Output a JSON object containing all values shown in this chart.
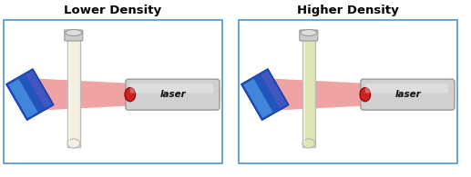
{
  "title_left": "Lower Density",
  "title_right": "Higher Density",
  "title_fontsize": 9.5,
  "title_fontweight": "bold",
  "bg_color": "#ffffff",
  "panel_border_color": "#5b9bd5",
  "tube_color_low": "#f5f0e0",
  "tube_color_high": "#dde5b0",
  "laser_beam_color": "#dd3333",
  "laser_text": "laser",
  "mirror_blue_dark": "#2255bb",
  "mirror_blue_light": "#55aaee"
}
